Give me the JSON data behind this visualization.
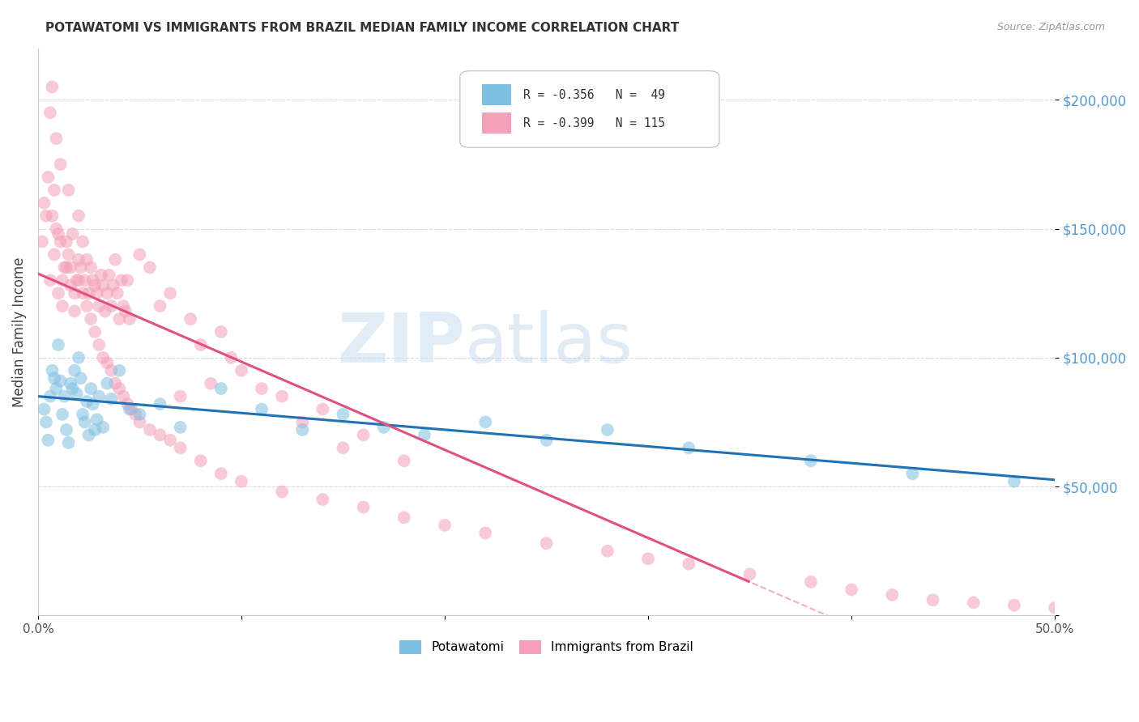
{
  "title": "POTAWATOMI VS IMMIGRANTS FROM BRAZIL MEDIAN FAMILY INCOME CORRELATION CHART",
  "source": "Source: ZipAtlas.com",
  "ylabel": "Median Family Income",
  "ytick_labels": [
    "",
    "$50,000",
    "$100,000",
    "$150,000",
    "$200,000"
  ],
  "ylim": [
    0,
    220000
  ],
  "xlim": [
    0,
    0.5
  ],
  "watermark_zip": "ZIP",
  "watermark_atlas": "atlas",
  "legend_line1": "R = -0.356   N =  49",
  "legend_line2": "R = -0.399   N = 115",
  "color_blue": "#7fbfdf",
  "color_pink": "#f4a0b8",
  "color_blue_line": "#2171b5",
  "color_pink_line": "#e05080",
  "color_ytick": "#5599cc",
  "color_grid": "#cccccc",
  "potawatomi_x": [
    0.003,
    0.004,
    0.005,
    0.006,
    0.007,
    0.008,
    0.009,
    0.01,
    0.011,
    0.012,
    0.013,
    0.014,
    0.015,
    0.016,
    0.017,
    0.018,
    0.019,
    0.02,
    0.021,
    0.022,
    0.023,
    0.024,
    0.025,
    0.026,
    0.027,
    0.028,
    0.029,
    0.03,
    0.032,
    0.034,
    0.036,
    0.04,
    0.045,
    0.05,
    0.06,
    0.07,
    0.09,
    0.11,
    0.13,
    0.15,
    0.17,
    0.19,
    0.22,
    0.25,
    0.28,
    0.32,
    0.38,
    0.43,
    0.48
  ],
  "potawatomi_y": [
    80000,
    75000,
    68000,
    85000,
    95000,
    92000,
    88000,
    105000,
    91000,
    78000,
    85000,
    72000,
    67000,
    90000,
    88000,
    95000,
    86000,
    100000,
    92000,
    78000,
    75000,
    83000,
    70000,
    88000,
    82000,
    72000,
    76000,
    85000,
    73000,
    90000,
    84000,
    95000,
    80000,
    78000,
    82000,
    73000,
    88000,
    80000,
    72000,
    78000,
    73000,
    70000,
    75000,
    68000,
    72000,
    65000,
    60000,
    55000,
    52000
  ],
  "brazil_x": [
    0.003,
    0.005,
    0.006,
    0.007,
    0.008,
    0.009,
    0.01,
    0.011,
    0.012,
    0.013,
    0.014,
    0.015,
    0.016,
    0.017,
    0.018,
    0.019,
    0.02,
    0.021,
    0.022,
    0.023,
    0.024,
    0.025,
    0.026,
    0.027,
    0.028,
    0.029,
    0.03,
    0.031,
    0.032,
    0.033,
    0.034,
    0.035,
    0.036,
    0.037,
    0.038,
    0.039,
    0.04,
    0.041,
    0.042,
    0.043,
    0.044,
    0.045,
    0.05,
    0.055,
    0.06,
    0.065,
    0.07,
    0.075,
    0.08,
    0.085,
    0.09,
    0.095,
    0.1,
    0.11,
    0.12,
    0.13,
    0.14,
    0.15,
    0.16,
    0.18,
    0.002,
    0.004,
    0.006,
    0.008,
    0.01,
    0.012,
    0.014,
    0.016,
    0.018,
    0.02,
    0.022,
    0.024,
    0.026,
    0.028,
    0.03,
    0.032,
    0.034,
    0.036,
    0.038,
    0.04,
    0.042,
    0.044,
    0.046,
    0.048,
    0.05,
    0.055,
    0.06,
    0.065,
    0.07,
    0.08,
    0.09,
    0.1,
    0.12,
    0.14,
    0.16,
    0.18,
    0.2,
    0.22,
    0.25,
    0.28,
    0.3,
    0.32,
    0.35,
    0.38,
    0.4,
    0.42,
    0.44,
    0.46,
    0.48,
    0.5,
    0.007,
    0.009,
    0.011,
    0.015,
    0.02
  ],
  "brazil_y": [
    160000,
    170000,
    195000,
    155000,
    165000,
    150000,
    148000,
    145000,
    130000,
    135000,
    145000,
    140000,
    135000,
    148000,
    125000,
    130000,
    138000,
    135000,
    145000,
    130000,
    138000,
    125000,
    135000,
    130000,
    128000,
    125000,
    120000,
    132000,
    128000,
    118000,
    125000,
    132000,
    120000,
    128000,
    138000,
    125000,
    115000,
    130000,
    120000,
    118000,
    130000,
    115000,
    140000,
    135000,
    120000,
    125000,
    85000,
    115000,
    105000,
    90000,
    110000,
    100000,
    95000,
    88000,
    85000,
    75000,
    80000,
    65000,
    70000,
    60000,
    145000,
    155000,
    130000,
    140000,
    125000,
    120000,
    135000,
    128000,
    118000,
    130000,
    125000,
    120000,
    115000,
    110000,
    105000,
    100000,
    98000,
    95000,
    90000,
    88000,
    85000,
    82000,
    80000,
    78000,
    75000,
    72000,
    70000,
    68000,
    65000,
    60000,
    55000,
    52000,
    48000,
    45000,
    42000,
    38000,
    35000,
    32000,
    28000,
    25000,
    22000,
    20000,
    16000,
    13000,
    10000,
    8000,
    6000,
    5000,
    4000,
    3000,
    205000,
    185000,
    175000,
    165000,
    155000
  ]
}
